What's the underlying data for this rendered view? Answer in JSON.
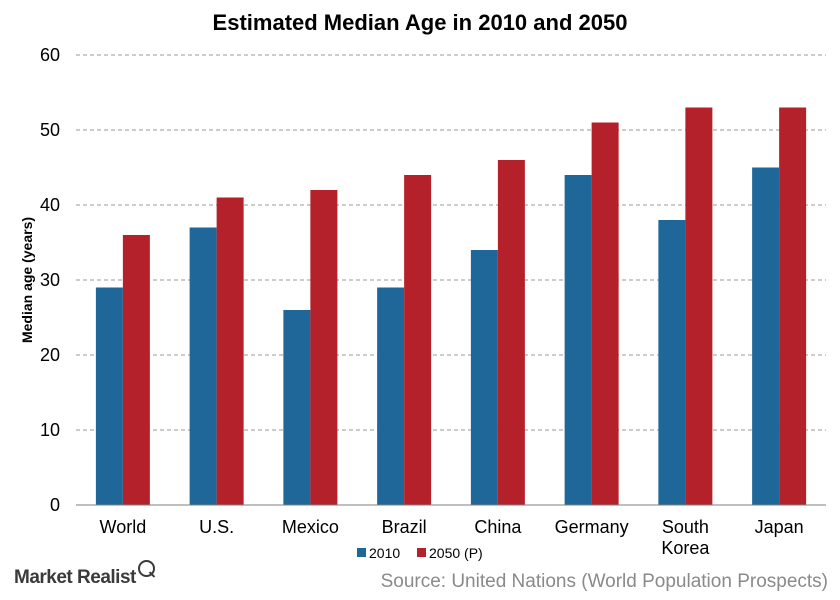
{
  "chart_data": {
    "type": "bar",
    "title": "Estimated Median Age in 2010 and 2050",
    "ylabel": "Median age (years)",
    "xlabel": "",
    "ylim": [
      0,
      60
    ],
    "yticks": [
      0,
      10,
      20,
      30,
      40,
      50,
      60
    ],
    "grid": "horizontal dashed",
    "legend_position": "bottom",
    "categories": [
      "World",
      "U.S.",
      "Mexico",
      "Brazil",
      "China",
      "Germany",
      "South Korea",
      "Japan"
    ],
    "series": [
      {
        "name": "2010",
        "color": "#1F6699",
        "values": [
          29,
          37,
          26,
          29,
          34,
          44,
          38,
          45
        ]
      },
      {
        "name": "2050 (P)",
        "color": "#B5212A",
        "values": [
          36,
          41,
          42,
          44,
          46,
          51,
          53,
          53
        ]
      }
    ]
  },
  "branding": {
    "logo_text": "Market Realist",
    "logo_icon": "magnifier-icon"
  },
  "source": "Source: United Nations (World Population Prospects)"
}
